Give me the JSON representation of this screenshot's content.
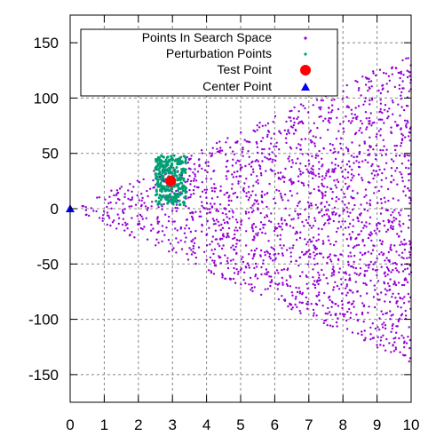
{
  "chart_data": {
    "type": "scatter",
    "title": "",
    "xlabel": "",
    "ylabel": "",
    "xlim": [
      0,
      10
    ],
    "ylim": [
      -175,
      175
    ],
    "x_ticks": [
      0,
      1,
      2,
      3,
      4,
      5,
      6,
      7,
      8,
      9,
      10
    ],
    "x_tick_labels": [
      "0",
      "1",
      "2",
      "3",
      "4",
      "5",
      "6",
      "7",
      "8",
      "9",
      "10"
    ],
    "y_ticks": [
      -150,
      -100,
      -50,
      0,
      50,
      100,
      150
    ],
    "y_tick_labels": [
      "-150",
      "-100",
      "-50",
      "0",
      "50",
      "100",
      "150"
    ],
    "grid": true,
    "legend_position": "top",
    "series": [
      {
        "name": "Points In Search Space",
        "color": "#9400d3",
        "marker": "dot",
        "distribution": "wedge",
        "center": [
          0,
          0
        ],
        "upper_slope": 14,
        "lower_slope": -14,
        "x_range": [
          0,
          10
        ],
        "count": 2000
      },
      {
        "name": "Perturbation Points",
        "color": "#009e73",
        "marker": "dot",
        "distribution": "box",
        "x_range": [
          2.5,
          3.4
        ],
        "y_range": [
          3,
          48
        ],
        "count": 300
      },
      {
        "name": "Test Point",
        "color": "#ff0000",
        "marker": "circle",
        "points": [
          [
            2.95,
            25
          ]
        ]
      },
      {
        "name": "Center Point",
        "color": "#0000ff",
        "marker": "triangle",
        "points": [
          [
            0,
            0
          ]
        ]
      }
    ]
  }
}
